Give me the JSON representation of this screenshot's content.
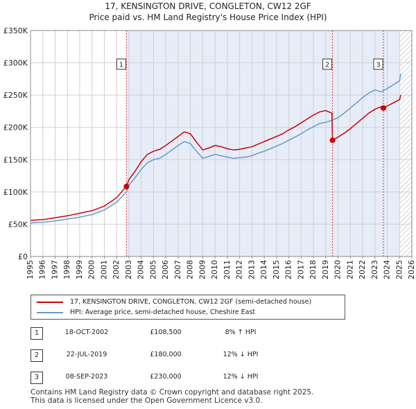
{
  "title": "17, KENSINGTON DRIVE, CONGLETON, CW12 2GF",
  "subtitle": "Price paid vs. HM Land Registry's House Price Index (HPI)",
  "colors": {
    "property": "#cc0000",
    "hpi": "#6699cc",
    "shade": "#e6ecf8",
    "hatch": "#b4b4c8",
    "vline": "#dd3333",
    "grid": "#d0d0d0"
  },
  "legend": {
    "property_label": "17, KENSINGTON DRIVE, CONGLETON, CW12 2GF (semi-detached house)",
    "hpi_label": "HPI: Average price, semi-detached house, Cheshire East"
  },
  "sales": [
    {
      "num": "1",
      "date": "18-OCT-2002",
      "price": "£108,500",
      "hpi": "8% ↑ HPI"
    },
    {
      "num": "2",
      "date": "22-JUL-2019",
      "price": "£180,000",
      "hpi": "12% ↓ HPI"
    },
    {
      "num": "3",
      "date": "08-SEP-2023",
      "price": "£230,000",
      "hpi": "12% ↓ HPI"
    }
  ],
  "footer": {
    "line1": "Contains HM Land Registry data © Crown copyright and database right 2025.",
    "line2": "This data is licensed under the Open Government Licence v3.0."
  },
  "chart_data": {
    "type": "line",
    "xlim": [
      1995,
      2026
    ],
    "ylim": [
      0,
      350000
    ],
    "x_ticks": [
      1995,
      1996,
      1997,
      1998,
      1999,
      2000,
      2001,
      2002,
      2003,
      2004,
      2005,
      2006,
      2007,
      2008,
      2009,
      2010,
      2011,
      2012,
      2013,
      2014,
      2015,
      2016,
      2017,
      2018,
      2019,
      2020,
      2021,
      2022,
      2023,
      2024,
      2025,
      2026
    ],
    "y_ticks": [
      {
        "value": 0,
        "label": "£0"
      },
      {
        "value": 50000,
        "label": "£50K"
      },
      {
        "value": 100000,
        "label": "£100K"
      },
      {
        "value": 150000,
        "label": "£150K"
      },
      {
        "value": 200000,
        "label": "£200K"
      },
      {
        "value": 250000,
        "label": "£250K"
      },
      {
        "value": 300000,
        "label": "£300K"
      },
      {
        "value": 350000,
        "label": "£350K"
      }
    ],
    "grid": true,
    "shaded_range": [
      2002.8,
      2025.0
    ],
    "hatched_range": [
      2025.0,
      2026
    ],
    "markers": [
      {
        "label": "1",
        "x": 2002.8,
        "y": 108500
      },
      {
        "label": "2",
        "x": 2019.55,
        "y": 180000
      },
      {
        "label": "3",
        "x": 2023.69,
        "y": 230000
      }
    ],
    "series": [
      {
        "key": "hpi",
        "x": [
          1995,
          1996,
          1997,
          1998,
          1999,
          2000,
          2001,
          2002,
          2002.8,
          2003,
          2003.5,
          2004,
          2004.5,
          2005,
          2005.5,
          2006,
          2006.5,
          2007,
          2007.5,
          2008,
          2008.5,
          2009,
          2009.5,
          2010,
          2010.5,
          2011,
          2011.5,
          2012,
          2012.5,
          2013,
          2013.5,
          2014,
          2014.5,
          2015,
          2015.5,
          2016,
          2016.5,
          2017,
          2017.5,
          2018,
          2018.5,
          2019,
          2019.5,
          2020,
          2020.5,
          2021,
          2021.5,
          2022,
          2022.5,
          2023,
          2023.5,
          2024,
          2024.5,
          2025,
          2025.1
        ],
        "y": [
          52000,
          53000,
          55000,
          58000,
          61000,
          65000,
          72000,
          84000,
          100000,
          110000,
          122000,
          135000,
          145000,
          150000,
          152000,
          158000,
          165000,
          172000,
          178000,
          175000,
          163000,
          152000,
          155000,
          158000,
          156000,
          154000,
          152000,
          153000,
          154000,
          156000,
          160000,
          163000,
          167000,
          171000,
          175000,
          180000,
          185000,
          190000,
          196000,
          201000,
          206000,
          208000,
          211000,
          215000,
          222000,
          230000,
          238000,
          246000,
          253000,
          258000,
          255000,
          260000,
          266000,
          272000,
          283000
        ]
      },
      {
        "key": "property",
        "x": [
          1995,
          1996,
          1997,
          1998,
          1999,
          2000,
          2001,
          2002,
          2002.8,
          2003,
          2003.5,
          2004,
          2004.5,
          2005,
          2005.5,
          2006,
          2006.5,
          2007,
          2007.5,
          2008,
          2008.5,
          2009,
          2009.5,
          2010,
          2010.5,
          2011,
          2011.5,
          2012,
          2012.5,
          2013,
          2013.5,
          2014,
          2014.5,
          2015,
          2015.5,
          2016,
          2016.5,
          2017,
          2017.5,
          2018,
          2018.5,
          2019,
          2019.5,
          2019.55,
          2020,
          2020.5,
          2021,
          2021.5,
          2022,
          2022.5,
          2023,
          2023.5,
          2023.69,
          2024,
          2024.5,
          2025,
          2025.1
        ],
        "y": [
          56000,
          57000,
          60000,
          63000,
          67000,
          71000,
          78000,
          91000,
          108500,
          119000,
          132000,
          147000,
          158000,
          163000,
          166000,
          172000,
          179000,
          186000,
          193000,
          190000,
          177000,
          165000,
          168000,
          172000,
          170000,
          167000,
          165000,
          166000,
          168000,
          170000,
          174000,
          178000,
          182000,
          186000,
          190000,
          196000,
          201000,
          207000,
          213000,
          219000,
          224000,
          226000,
          222000,
          180000,
          185000,
          191000,
          198000,
          206000,
          214000,
          222000,
          228000,
          232000,
          230000,
          233000,
          238000,
          243000,
          250000
        ]
      }
    ]
  }
}
